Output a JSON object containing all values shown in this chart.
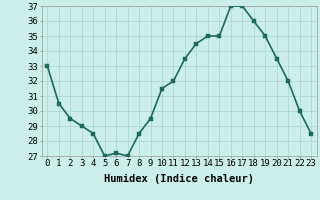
{
  "x": [
    0,
    1,
    2,
    3,
    4,
    5,
    6,
    7,
    8,
    9,
    10,
    11,
    12,
    13,
    14,
    15,
    16,
    17,
    18,
    19,
    20,
    21,
    22,
    23
  ],
  "y": [
    33,
    30.5,
    29.5,
    29,
    28.5,
    27,
    27.2,
    27,
    28.5,
    29.5,
    31.5,
    32,
    33.5,
    34.5,
    35,
    35,
    37,
    37,
    36,
    35,
    33.5,
    32,
    30,
    28.5
  ],
  "line_color": "#1a6b5a",
  "marker_color": "#1a6b5a",
  "bg_color": "#cceee8",
  "grid_color": "#aad4cc",
  "xlabel": "Humidex (Indice chaleur)",
  "ylim": [
    27,
    37
  ],
  "xlim_min": -0.5,
  "xlim_max": 23.5,
  "yticks": [
    27,
    28,
    29,
    30,
    31,
    32,
    33,
    34,
    35,
    36,
    37
  ],
  "xticks": [
    0,
    1,
    2,
    3,
    4,
    5,
    6,
    7,
    8,
    9,
    10,
    11,
    12,
    13,
    14,
    15,
    16,
    17,
    18,
    19,
    20,
    21,
    22,
    23
  ],
  "xtick_labels": [
    "0",
    "1",
    "2",
    "3",
    "4",
    "5",
    "6",
    "7",
    "8",
    "9",
    "10",
    "11",
    "12",
    "13",
    "14",
    "15",
    "16",
    "17",
    "18",
    "19",
    "20",
    "21",
    "22",
    "23"
  ],
  "xlabel_fontsize": 7.5,
  "tick_fontsize": 6.5,
  "line_width": 1.2,
  "marker_size": 2.8
}
